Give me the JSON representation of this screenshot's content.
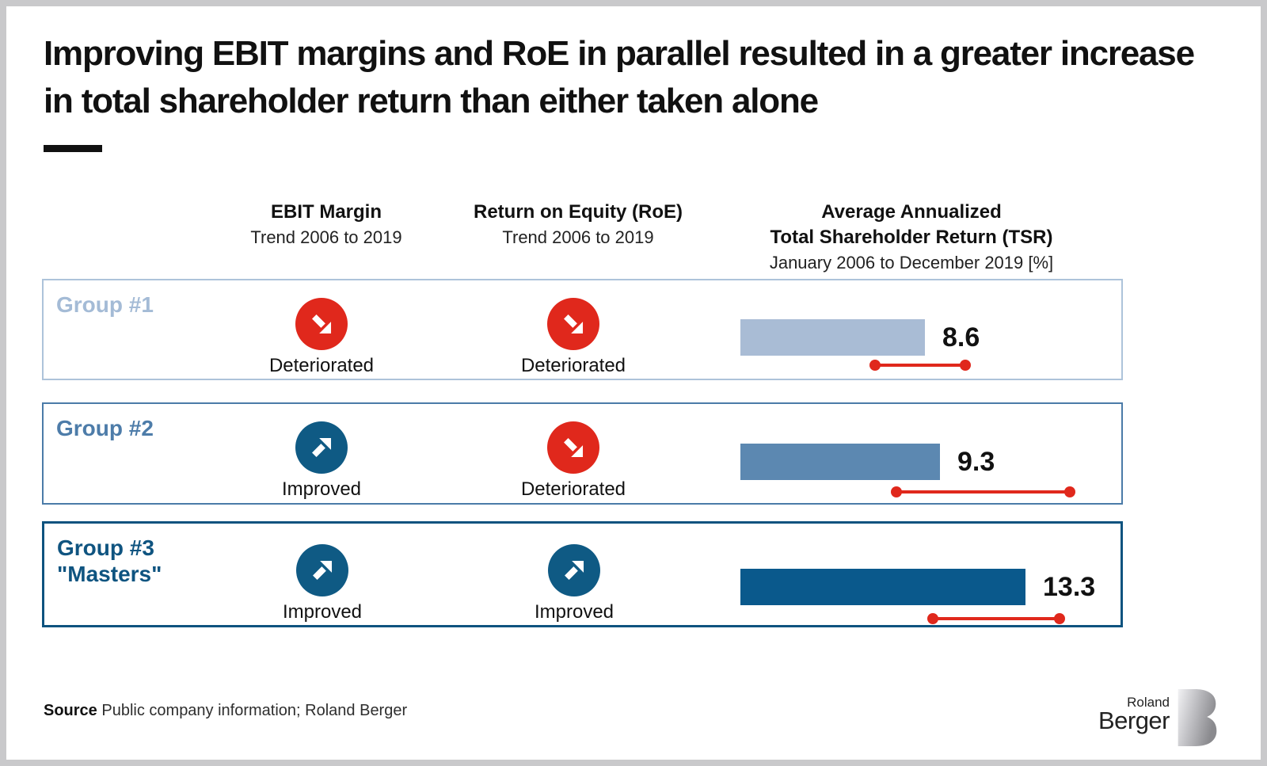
{
  "title": "Improving EBIT margins and RoE in parallel resulted in a greater increase in total shareholder return than either taken alone",
  "columns": {
    "ebit": {
      "title": "EBIT Margin",
      "subtitle": "Trend 2006 to 2019"
    },
    "roe": {
      "title": "Return on Equity (RoE)",
      "subtitle": "Trend 2006 to 2019"
    },
    "tsr": {
      "title_line1": "Average Annualized",
      "title_line2": "Total Shareholder Return (TSR)",
      "subtitle": "January 2006 to December 2019 [%]"
    }
  },
  "groups": [
    {
      "label": "Group #1",
      "sublabel": "",
      "ebit_trend": "Deteriorated",
      "roe_trend": "Deteriorated",
      "tsr": 8.6
    },
    {
      "label": "Group #2",
      "sublabel": "",
      "ebit_trend": "Improved",
      "roe_trend": "Deteriorated",
      "tsr": 9.3
    },
    {
      "label": "Group #3",
      "sublabel": "\"Masters\"",
      "ebit_trend": "Improved",
      "roe_trend": "Improved",
      "tsr": 13.3
    }
  ],
  "chart_data": {
    "type": "bar",
    "title": "Average Annualized Total Shareholder Return (TSR)",
    "subtitle": "January 2006 to December 2019 [%]",
    "categories": [
      "Group #1",
      "Group #2",
      "Group #3 \"Masters\""
    ],
    "values": [
      8.6,
      9.3,
      13.3
    ],
    "value_labels": [
      "8.6",
      "9.3",
      "13.3"
    ],
    "bar_colors": [
      "#a9bcd5",
      "#5c88b1",
      "#0a598c"
    ],
    "range_lines_estimated": [
      [
        6.3,
        10.5
      ],
      [
        7.3,
        15.4
      ],
      [
        9.0,
        14.9
      ]
    ],
    "range_line_color": "#e0281c",
    "orientation": "horizontal",
    "xlim": [
      0,
      17
    ],
    "grid": false,
    "legend": false,
    "trend_indicators": [
      {
        "group": "Group #1",
        "ebit_margin": "Deteriorated",
        "roe": "Deteriorated"
      },
      {
        "group": "Group #2",
        "ebit_margin": "Improved",
        "roe": "Deteriorated"
      },
      {
        "group": "Group #3 \"Masters\"",
        "ebit_margin": "Improved",
        "roe": "Improved"
      }
    ]
  },
  "source": {
    "label": "Source",
    "text": "Public company information; Roland Berger"
  },
  "logo": {
    "top": "Roland",
    "bottom": "Berger"
  },
  "colors": {
    "red": "#e0281c",
    "improved_blue": "#0f5a84",
    "row1_accent": "#a4bbd6",
    "row2_accent": "#4d7ca9",
    "row3_accent": "#0f5480"
  }
}
